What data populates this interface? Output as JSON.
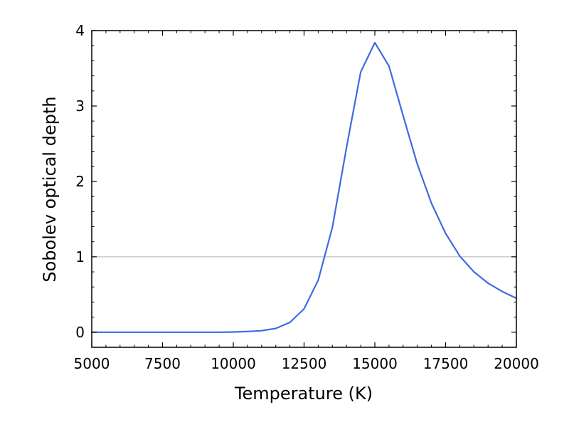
{
  "chart_data": {
    "type": "line",
    "title": "",
    "xlabel": "Temperature (K)",
    "ylabel": "Sobolev optical depth",
    "xlim": [
      5000,
      20000
    ],
    "ylim": [
      -0.2,
      4.0
    ],
    "xticks": [
      5000,
      7500,
      10000,
      12500,
      15000,
      17500,
      20000
    ],
    "xtick_labels": [
      "5000",
      "7500",
      "10000",
      "12500",
      "15000",
      "17500",
      "20000"
    ],
    "yticks": [
      0,
      1,
      2,
      3,
      4
    ],
    "ytick_labels": [
      "0",
      "1",
      "2",
      "3",
      "4"
    ],
    "reference_line": {
      "y": 1,
      "color": "#b0b0b0"
    },
    "series": [
      {
        "color": "#4169e1",
        "x": [
          5000,
          5500,
          6000,
          6500,
          7000,
          7500,
          8000,
          8500,
          9000,
          9500,
          10000,
          10500,
          11000,
          11500,
          12000,
          12500,
          13000,
          13500,
          14000,
          14500,
          15000,
          15500,
          16000,
          16500,
          17000,
          17500,
          18000,
          18500,
          19000,
          19500,
          20000
        ],
        "y": [
          0,
          0,
          0,
          0,
          0,
          0,
          0,
          0,
          0,
          0,
          0.003,
          0.01,
          0.02,
          0.05,
          0.13,
          0.31,
          0.69,
          1.39,
          2.45,
          3.45,
          3.84,
          3.53,
          2.87,
          2.23,
          1.71,
          1.31,
          1.01,
          0.8,
          0.65,
          0.54,
          0.45
        ]
      }
    ],
    "grid": false
  }
}
